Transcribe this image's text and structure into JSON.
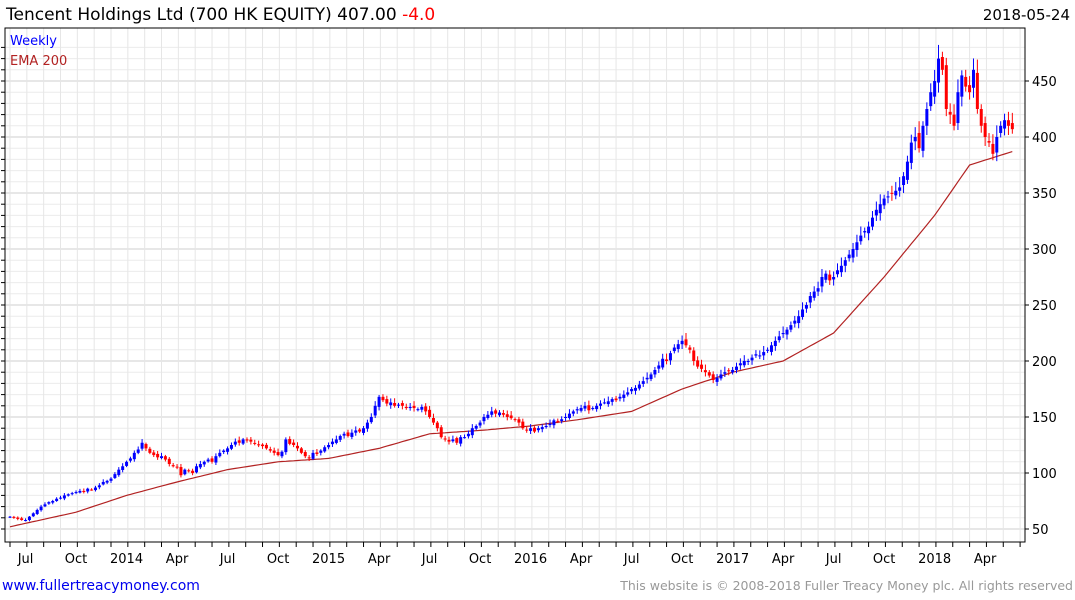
{
  "header": {
    "title": "Tencent Holdings Ltd (700 HK EQUITY) 407.00",
    "change": "-4.0",
    "date": "2018-05-24"
  },
  "legend": {
    "series1": "Weekly",
    "series2": "EMA 200"
  },
  "footer": {
    "link": "www.fullertreacymoney.com",
    "copyright": "This website is © 2008-2018 Fuller Treacy Money plc. All rights reserved"
  },
  "colors": {
    "up": "#0000ff",
    "down": "#ff0000",
    "ema": "#b22222",
    "grid": "#dcdcdc"
  },
  "chart_data": {
    "type": "candlestick",
    "title": "Tencent Holdings Ltd (700 HK EQUITY) 407.00 -4.0",
    "frequency": "weekly",
    "start_week": "2013-06",
    "end_date": "2018-05-24",
    "ylim": [
      45,
      490
    ],
    "y_ticks": [
      "50",
      "100",
      "150",
      "200",
      "250",
      "300",
      "350",
      "400",
      "450"
    ],
    "y_tick_values": [
      50,
      100,
      150,
      200,
      250,
      300,
      350,
      400,
      450
    ],
    "x_ticks": [
      "Jul",
      "Oct",
      "2014",
      "Apr",
      "Jul",
      "Oct",
      "2015",
      "Apr",
      "Jul",
      "Oct",
      "2016",
      "Apr",
      "Jul",
      "Oct",
      "2017",
      "Apr",
      "Jul",
      "Oct",
      "2018",
      "Apr"
    ],
    "x_tick_weeks": [
      4,
      17,
      30,
      43,
      56,
      69,
      82,
      95,
      108,
      121,
      134,
      147,
      160,
      173,
      186,
      199,
      212,
      225,
      238,
      251
    ],
    "grid": true,
    "legend_position": "top-left",
    "weekly_close": [
      61,
      60,
      59,
      58,
      58,
      61,
      64,
      67,
      70,
      72,
      74,
      75,
      77,
      78,
      80,
      81,
      82,
      83,
      84,
      83,
      86,
      85,
      87,
      89,
      92,
      93,
      95,
      99,
      103,
      106,
      110,
      113,
      118,
      121,
      127,
      122,
      118,
      116,
      114,
      115,
      112,
      108,
      106,
      105,
      98,
      103,
      102,
      100,
      106,
      108,
      110,
      112,
      110,
      115,
      118,
      120,
      122,
      125,
      128,
      127,
      130,
      129,
      128,
      126,
      125,
      124,
      122,
      120,
      118,
      116,
      119,
      130,
      126,
      125,
      122,
      118,
      115,
      113,
      118,
      117,
      120,
      123,
      125,
      128,
      130,
      133,
      135,
      133,
      136,
      138,
      137,
      140,
      145,
      150,
      160,
      168,
      165,
      162,
      163,
      160,
      161,
      160,
      158,
      159,
      158,
      157,
      159,
      155,
      150,
      145,
      140,
      132,
      130,
      128,
      130,
      127,
      132,
      132,
      135,
      140,
      142,
      145,
      150,
      152,
      155,
      153,
      154,
      152,
      150,
      149,
      148,
      145,
      140,
      138,
      140,
      137,
      140,
      141,
      142,
      144,
      147,
      146,
      148,
      150,
      153,
      155,
      157,
      158,
      160,
      156,
      158,
      160,
      162,
      163,
      164,
      166,
      165,
      168,
      170,
      172,
      175,
      176,
      179,
      182,
      185,
      188,
      192,
      196,
      202,
      200,
      207,
      212,
      215,
      218,
      214,
      210,
      200,
      195,
      193,
      190,
      187,
      183,
      185,
      188,
      190,
      191,
      192,
      195,
      198,
      200,
      200,
      203,
      206,
      205,
      208,
      210,
      214,
      218,
      222,
      225,
      228,
      232,
      236,
      240,
      246,
      250,
      258,
      262,
      265,
      275,
      278,
      272,
      275,
      281,
      285,
      290,
      295,
      300,
      306,
      312,
      316,
      320,
      328,
      335,
      340,
      345,
      347,
      350,
      352,
      355,
      365,
      378,
      395,
      400,
      390,
      410,
      425,
      440,
      450,
      470,
      460,
      425,
      420,
      410,
      440,
      455,
      445,
      440,
      460,
      425,
      410,
      400,
      395,
      385,
      400,
      410,
      415,
      410,
      407
    ],
    "ema_200": {
      "weeks": [
        0,
        17,
        30,
        43,
        56,
        69,
        82,
        95,
        108,
        121,
        134,
        147,
        160,
        173,
        186,
        199,
        212,
        225,
        238,
        247,
        258
      ],
      "values": [
        52,
        65,
        80,
        92,
        103,
        110,
        113,
        122,
        135,
        138,
        142,
        148,
        155,
        175,
        190,
        200,
        225,
        275,
        330,
        375,
        387
      ]
    }
  }
}
